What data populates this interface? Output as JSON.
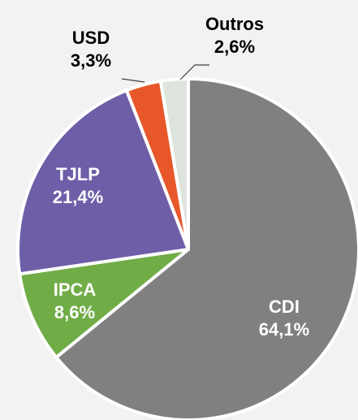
{
  "chart_data": {
    "type": "pie",
    "categories": [
      "CDI",
      "IPCA",
      "TJLP",
      "USD",
      "Outros"
    ],
    "values": [
      64.1,
      8.6,
      21.4,
      3.3,
      2.6
    ],
    "value_labels": [
      "64,1%",
      "8,6%",
      "21,4%",
      "3,3%",
      "2,6%"
    ],
    "colors": [
      "#808080",
      "#70ad47",
      "#6e5ea8",
      "#e8572a",
      "#dde4dc"
    ]
  }
}
